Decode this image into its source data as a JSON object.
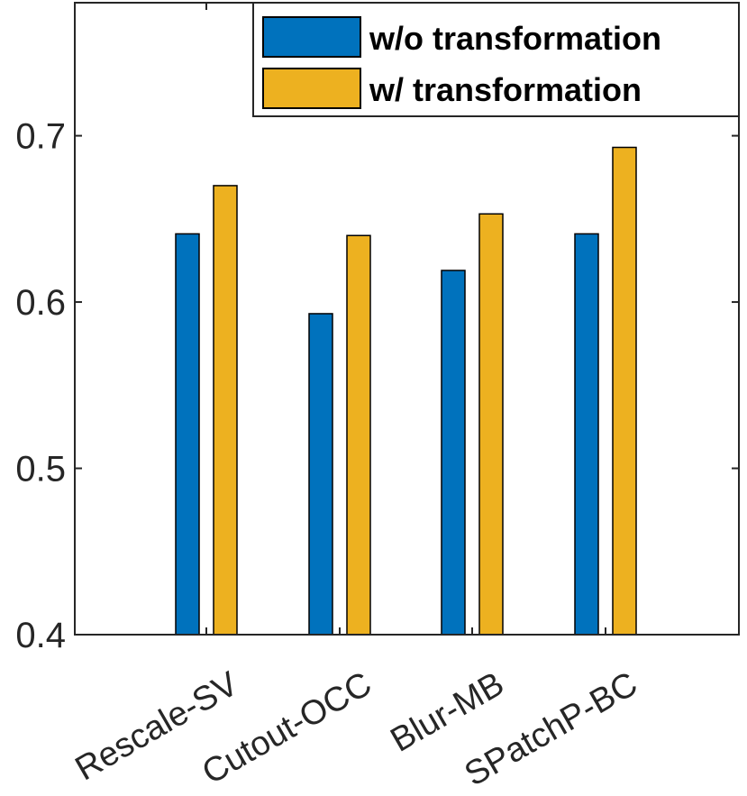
{
  "chart_data": {
    "type": "bar",
    "title": "",
    "xlabel": "",
    "ylabel": "",
    "categories": [
      "Rescale-SV",
      "Cutout-OCC",
      "Blur-MB",
      "SPatchP-BC"
    ],
    "series": [
      {
        "name": "w/o transformation",
        "color": "#0072BD",
        "values": [
          0.641,
          0.593,
          0.619,
          0.641
        ]
      },
      {
        "name": "w/ transformation",
        "color": "#EDB120",
        "values": [
          0.67,
          0.64,
          0.653,
          0.693
        ]
      }
    ],
    "ylim": [
      0.4,
      0.78
    ],
    "yticks": [
      0.4,
      0.5,
      0.6,
      0.7
    ],
    "ytick_labels": [
      "0.4",
      "0.5",
      "0.6",
      "0.7"
    ],
    "grid": false,
    "legend_position": "top-right"
  }
}
